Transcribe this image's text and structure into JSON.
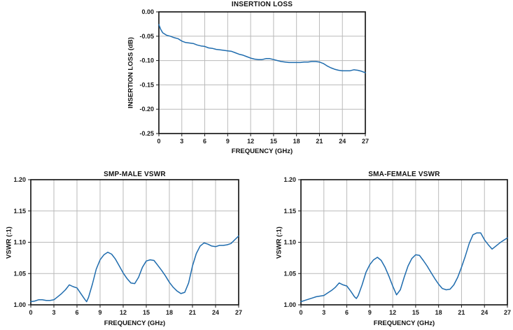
{
  "page": {
    "background": "#ffffff"
  },
  "chart_data": [
    {
      "type": "line",
      "title": "INSERTION LOSS",
      "xlabel": "FREQUENCY (GHz)",
      "ylabel": "INSERTION LOSS (dB)",
      "xlim": [
        0,
        27
      ],
      "ylim": [
        -0.25,
        0
      ],
      "x_ticks": [
        0,
        3,
        6,
        9,
        12,
        15,
        18,
        21,
        24,
        27
      ],
      "y_ticks": [
        0,
        -0.05,
        -0.1,
        -0.15,
        -0.2,
        -0.25
      ],
      "y_tick_labels": [
        "0.00",
        "-0.05",
        "-0.10",
        "-0.15",
        "-0.20",
        "-0.25"
      ],
      "grid": true,
      "legend": "none",
      "line_color": "#1f6cae",
      "x": [
        0,
        0.25,
        0.5,
        1,
        1.5,
        2,
        2.5,
        3,
        3.5,
        4,
        4.5,
        5,
        5.5,
        6,
        6.5,
        7,
        7.5,
        8,
        8.5,
        9,
        9.5,
        10,
        10.5,
        11,
        11.5,
        12,
        12.5,
        13,
        13.5,
        14,
        14.5,
        15,
        15.5,
        16,
        16.5,
        17,
        17.5,
        18,
        18.5,
        19,
        19.5,
        20,
        20.5,
        21,
        21.5,
        22,
        22.5,
        23,
        23.5,
        24,
        24.5,
        25,
        25.5,
        26,
        26.5,
        27
      ],
      "y": [
        -0.026,
        -0.036,
        -0.043,
        -0.048,
        -0.05,
        -0.053,
        -0.055,
        -0.06,
        -0.063,
        -0.064,
        -0.065,
        -0.068,
        -0.07,
        -0.071,
        -0.074,
        -0.075,
        -0.077,
        -0.078,
        -0.079,
        -0.08,
        -0.081,
        -0.084,
        -0.087,
        -0.089,
        -0.092,
        -0.095,
        -0.097,
        -0.098,
        -0.098,
        -0.096,
        -0.096,
        -0.098,
        -0.1,
        -0.102,
        -0.103,
        -0.104,
        -0.104,
        -0.104,
        -0.104,
        -0.103,
        -0.103,
        -0.102,
        -0.102,
        -0.103,
        -0.106,
        -0.111,
        -0.115,
        -0.118,
        -0.12,
        -0.121,
        -0.121,
        -0.121,
        -0.119,
        -0.12,
        -0.122,
        -0.125
      ]
    },
    {
      "type": "line",
      "title": "SMP-MALE VSWR",
      "xlabel": "FREQUENCY (GHz)",
      "ylabel": "VSWR (:1)",
      "xlim": [
        0,
        27
      ],
      "ylim": [
        1.0,
        1.2
      ],
      "x_ticks": [
        0,
        3,
        6,
        9,
        12,
        15,
        18,
        21,
        24,
        27
      ],
      "y_ticks": [
        1.2,
        1.15,
        1.1,
        1.05,
        1.0
      ],
      "y_tick_labels": [
        "1.20",
        "1.15",
        "1.10",
        "1.05",
        "1.00"
      ],
      "grid": true,
      "legend": "none",
      "line_color": "#1f6cae",
      "x": [
        0,
        0.5,
        1,
        1.5,
        2,
        2.5,
        3,
        3.5,
        4,
        4.5,
        5,
        5.5,
        6,
        6.5,
        7,
        7.25,
        7.5,
        8,
        8.5,
        9,
        9.5,
        10,
        10.5,
        11,
        11.5,
        12,
        12.5,
        13,
        13.5,
        14,
        14.5,
        15,
        15.5,
        16,
        16.5,
        17,
        17.5,
        18,
        18.5,
        19,
        19.5,
        20,
        20.5,
        21,
        21.5,
        22,
        22.5,
        23,
        23.5,
        24,
        24.5,
        25,
        25.5,
        26,
        26.5,
        27
      ],
      "y": [
        1.005,
        1.006,
        1.008,
        1.008,
        1.007,
        1.007,
        1.008,
        1.013,
        1.018,
        1.024,
        1.032,
        1.029,
        1.027,
        1.018,
        1.009,
        1.005,
        1.012,
        1.033,
        1.057,
        1.072,
        1.08,
        1.084,
        1.081,
        1.073,
        1.062,
        1.051,
        1.042,
        1.035,
        1.034,
        1.044,
        1.06,
        1.07,
        1.072,
        1.071,
        1.063,
        1.055,
        1.046,
        1.036,
        1.028,
        1.022,
        1.018,
        1.02,
        1.035,
        1.062,
        1.082,
        1.094,
        1.099,
        1.097,
        1.094,
        1.093,
        1.095,
        1.095,
        1.096,
        1.098,
        1.104,
        1.11
      ]
    },
    {
      "type": "line",
      "title": "SMA-FEMALE VSWR",
      "xlabel": "FREQUENCY (GHz)",
      "ylabel": "VSWR (:1)",
      "xlim": [
        0,
        27
      ],
      "ylim": [
        1.0,
        1.2
      ],
      "x_ticks": [
        0,
        3,
        6,
        9,
        12,
        15,
        18,
        21,
        24,
        27
      ],
      "y_ticks": [
        1.2,
        1.15,
        1.1,
        1.05,
        1.0
      ],
      "y_tick_labels": [
        "1.20",
        "1.15",
        "1.10",
        "1.05",
        "1.00"
      ],
      "grid": true,
      "legend": "none",
      "line_color": "#1f6cae",
      "x": [
        0,
        0.5,
        1,
        1.5,
        2,
        2.5,
        3,
        3.5,
        4,
        4.5,
        5,
        5.5,
        6,
        6.5,
        7,
        7.25,
        7.5,
        8,
        8.5,
        9,
        9.5,
        10,
        10.5,
        11,
        11.5,
        12,
        12.5,
        13,
        13.5,
        14,
        14.5,
        15,
        15.5,
        16,
        16.5,
        17,
        17.5,
        18,
        18.5,
        19,
        19.5,
        20,
        20.5,
        21,
        21.5,
        22,
        22.5,
        23,
        23.5,
        24,
        24.5,
        25,
        25.5,
        26,
        26.5,
        27
      ],
      "y": [
        1.005,
        1.007,
        1.009,
        1.011,
        1.013,
        1.014,
        1.015,
        1.019,
        1.023,
        1.028,
        1.035,
        1.032,
        1.03,
        1.022,
        1.013,
        1.01,
        1.015,
        1.032,
        1.052,
        1.064,
        1.072,
        1.076,
        1.071,
        1.06,
        1.046,
        1.03,
        1.016,
        1.024,
        1.044,
        1.062,
        1.074,
        1.08,
        1.079,
        1.071,
        1.062,
        1.052,
        1.042,
        1.033,
        1.026,
        1.024,
        1.025,
        1.032,
        1.044,
        1.06,
        1.078,
        1.098,
        1.112,
        1.115,
        1.115,
        1.104,
        1.096,
        1.089,
        1.094,
        1.099,
        1.103,
        1.107
      ]
    }
  ]
}
